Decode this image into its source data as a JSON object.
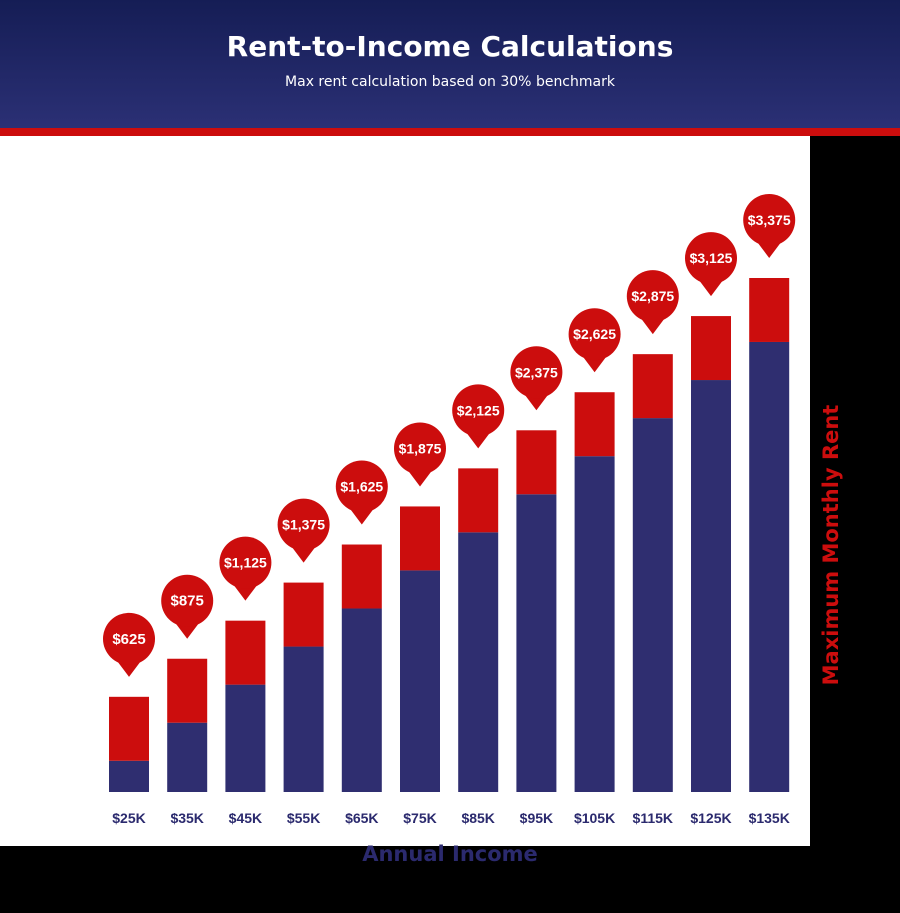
{
  "header": {
    "title": "Rent-to-Income Calculations",
    "subtitle": "Max rent calculation based on 30% benchmark"
  },
  "colors": {
    "header_bg": "#1e2463",
    "accent_red": "#cc0d0d",
    "bar_navy": "#2f2e70",
    "background": "#000000",
    "panel": "#ffffff"
  },
  "chart_data": {
    "type": "bar",
    "title": "Rent-to-Income Calculations",
    "subtitle": "Max rent calculation based on 30% benchmark",
    "xlabel": "Annual Income",
    "ylabel": "Maximum Monthly Rent",
    "categories": [
      "$25K",
      "$35K",
      "$45K",
      "$55K",
      "$65K",
      "$75K",
      "$85K",
      "$95K",
      "$105K",
      "$115K",
      "$125K",
      "$135K"
    ],
    "values": [
      625,
      875,
      1125,
      1375,
      1625,
      1875,
      2125,
      2375,
      2625,
      2875,
      3125,
      3375
    ],
    "value_labels": [
      "$625",
      "$875",
      "$1,125",
      "$1,375",
      "$1,625",
      "$1,875",
      "$2,125",
      "$2,375",
      "$2,625",
      "$2,875",
      "$3,125",
      "$3,375"
    ],
    "grid": false,
    "legend": "none"
  }
}
